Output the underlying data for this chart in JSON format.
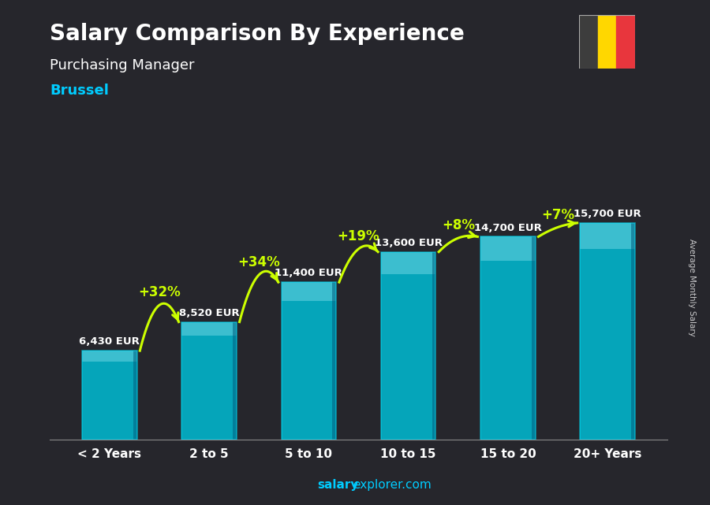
{
  "title": "Salary Comparison By Experience",
  "subtitle": "Purchasing Manager",
  "city": "Brussel",
  "ylabel": "Average Monthly Salary",
  "categories": [
    "< 2 Years",
    "2 to 5",
    "5 to 10",
    "10 to 15",
    "15 to 20",
    "20+ Years"
  ],
  "values": [
    6430,
    8520,
    11400,
    13600,
    14700,
    15700
  ],
  "labels": [
    "6,430 EUR",
    "8,520 EUR",
    "11,400 EUR",
    "13,600 EUR",
    "14,700 EUR",
    "15,700 EUR"
  ],
  "pct_changes": [
    "+32%",
    "+34%",
    "+19%",
    "+8%",
    "+7%"
  ],
  "bar_color_main": "#00bcd4",
  "bar_color_light": "#80deea",
  "bar_color_dark": "#006080",
  "background_color": "#2a2a2a",
  "title_color": "#ffffff",
  "subtitle_color": "#ffffff",
  "city_color": "#00ccff",
  "label_color": "#ffffff",
  "pct_color": "#ccff00",
  "watermark_bold": "salary",
  "watermark_regular": "explorer.com",
  "flag_colors": [
    "#3d3d3d",
    "#FFD700",
    "#e8363d"
  ],
  "source_label": "Average Monthly Salary"
}
